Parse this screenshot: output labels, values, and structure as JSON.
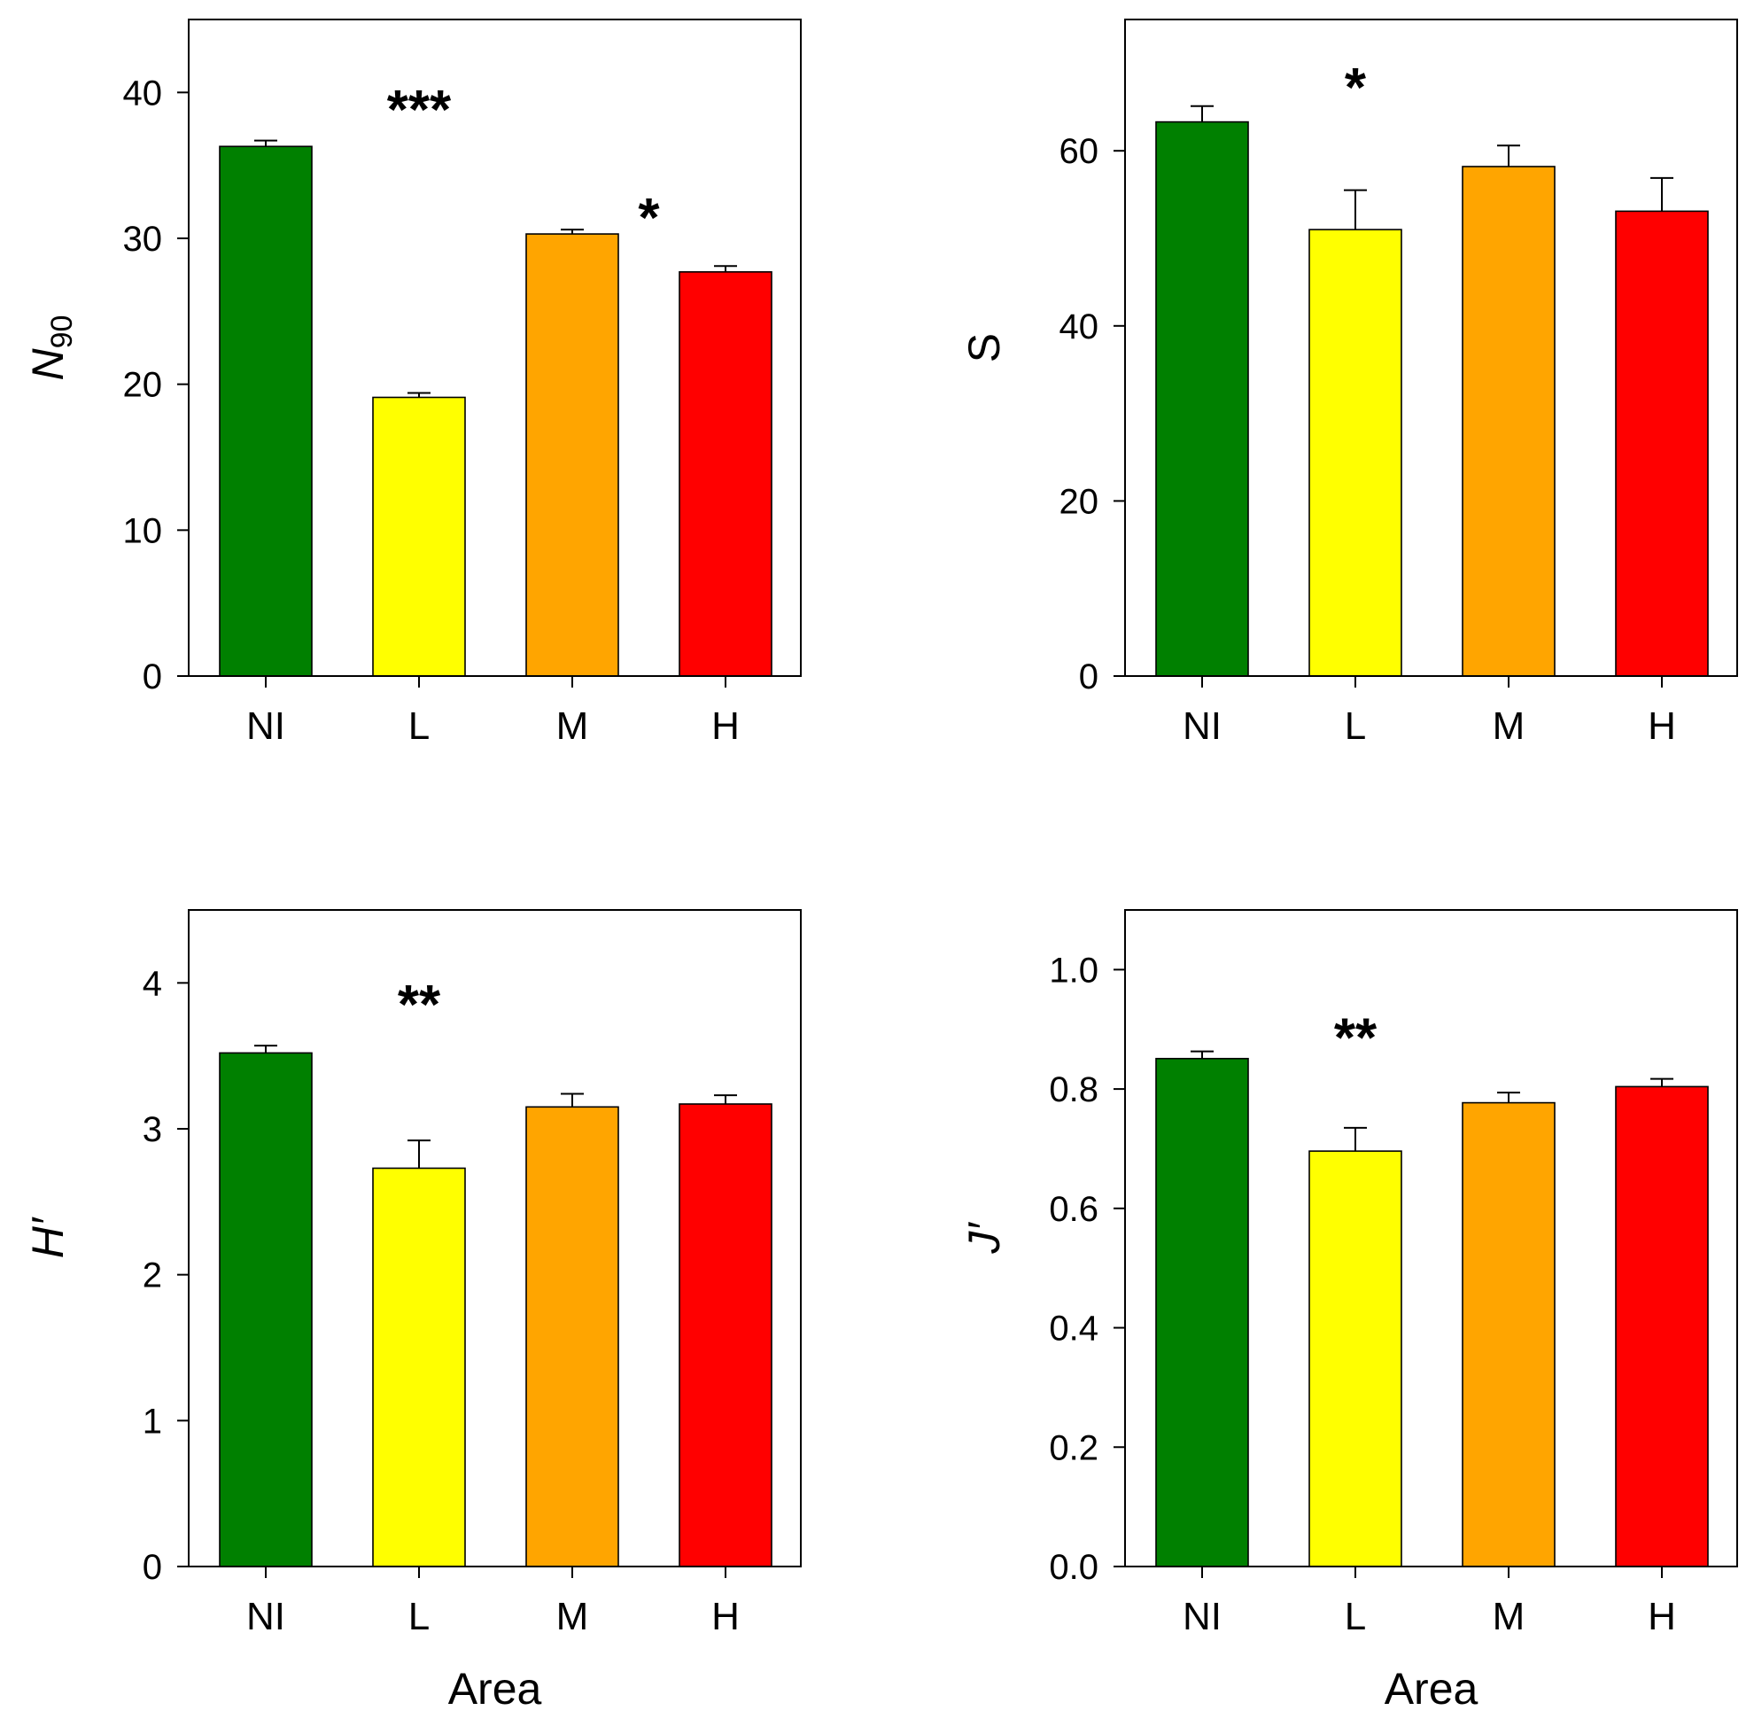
{
  "colors": {
    "NI": "#008000",
    "L": "#ffff00",
    "M": "#ffa500",
    "H": "#ff0000",
    "axis": "#000000"
  },
  "chart_data": [
    {
      "type": "bar",
      "panel": "top-left",
      "categories": [
        "NI",
        "L",
        "M",
        "H"
      ],
      "values": [
        36.3,
        19.1,
        30.3,
        27.7
      ],
      "errors": [
        0.4,
        0.3,
        0.3,
        0.4
      ],
      "ylabel": "N",
      "ylabel_sub": "90",
      "ylabel_italic": true,
      "xlabel": "",
      "ylim": [
        0,
        45
      ],
      "yticks": [
        0,
        10,
        20,
        30,
        40
      ],
      "tick_decimals": 0,
      "annotations": [
        {
          "text": "***",
          "x": "L",
          "y": 39.6
        },
        {
          "text": "*",
          "x": "M|H",
          "y": 32.2
        }
      ]
    },
    {
      "type": "bar",
      "panel": "top-right",
      "categories": [
        "NI",
        "L",
        "M",
        "H"
      ],
      "values": [
        63.3,
        51.0,
        58.2,
        53.1
      ],
      "errors": [
        1.8,
        4.5,
        2.4,
        3.8
      ],
      "ylabel": "S",
      "ylabel_italic": false,
      "xlabel": "",
      "ylim": [
        0,
        75
      ],
      "yticks": [
        0,
        20,
        40,
        60
      ],
      "tick_decimals": 0,
      "annotations": [
        {
          "text": "*",
          "x": "L",
          "y": 68.5
        }
      ]
    },
    {
      "type": "bar",
      "panel": "bottom-left",
      "categories": [
        "NI",
        "L",
        "M",
        "H"
      ],
      "values": [
        3.52,
        2.73,
        3.15,
        3.17
      ],
      "errors": [
        0.05,
        0.19,
        0.09,
        0.06
      ],
      "ylabel": "H′",
      "ylabel_italic": true,
      "xlabel": "Area",
      "ylim": [
        0,
        4.5
      ],
      "yticks": [
        0,
        1,
        2,
        3,
        4
      ],
      "tick_decimals": 0,
      "annotations": [
        {
          "text": "**",
          "x": "L",
          "y": 3.93
        }
      ]
    },
    {
      "type": "bar",
      "panel": "bottom-right",
      "categories": [
        "NI",
        "L",
        "M",
        "H"
      ],
      "values": [
        0.851,
        0.696,
        0.777,
        0.804
      ],
      "errors": [
        0.012,
        0.039,
        0.017,
        0.013
      ],
      "ylabel": "J′",
      "ylabel_italic": true,
      "xlabel": "Area",
      "ylim": [
        0,
        1.1
      ],
      "yticks": [
        0,
        0.2,
        0.4,
        0.6,
        0.8,
        1.0
      ],
      "tick_decimals": 1,
      "annotations": [
        {
          "text": "**",
          "x": "L",
          "y": 0.905
        }
      ]
    }
  ]
}
